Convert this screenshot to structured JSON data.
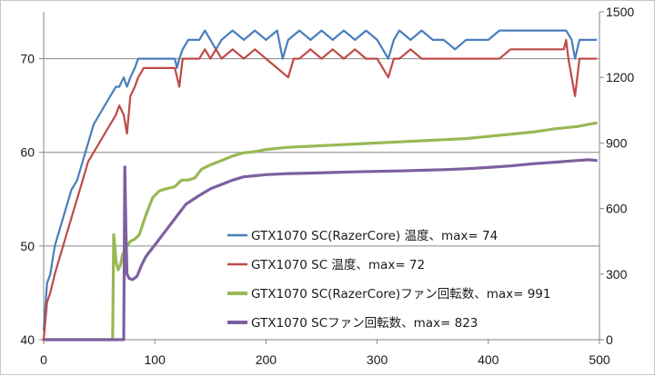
{
  "chart_data": {
    "type": "line",
    "x_range": [
      0,
      500
    ],
    "x_ticks": [
      0,
      100,
      200,
      300,
      400,
      500
    ],
    "y_left_range": [
      40,
      75
    ],
    "y_left_ticks": [
      40,
      50,
      60,
      70
    ],
    "y_right_range": [
      0,
      1500
    ],
    "y_right_ticks": [
      0,
      300,
      600,
      900,
      1200,
      1500
    ],
    "grid": "horizontal",
    "legend_position": "bottom-center",
    "series": [
      {
        "name": "GTX1070 SC(RazerCore) 温度、max= 74",
        "axis": "left",
        "color": "#4a7ebb",
        "points": [
          [
            0,
            41
          ],
          [
            3,
            46
          ],
          [
            6,
            47
          ],
          [
            10,
            50
          ],
          [
            15,
            52
          ],
          [
            20,
            54
          ],
          [
            25,
            56
          ],
          [
            30,
            57
          ],
          [
            35,
            59
          ],
          [
            40,
            61
          ],
          [
            45,
            63
          ],
          [
            50,
            64
          ],
          [
            55,
            65
          ],
          [
            60,
            66
          ],
          [
            65,
            67
          ],
          [
            68,
            67
          ],
          [
            72,
            68
          ],
          [
            75,
            67
          ],
          [
            78,
            68
          ],
          [
            82,
            69
          ],
          [
            85,
            70
          ],
          [
            90,
            70
          ],
          [
            100,
            70
          ],
          [
            110,
            70
          ],
          [
            118,
            70
          ],
          [
            120,
            69
          ],
          [
            122,
            70
          ],
          [
            125,
            71
          ],
          [
            130,
            72
          ],
          [
            135,
            72
          ],
          [
            140,
            72
          ],
          [
            145,
            73
          ],
          [
            150,
            72
          ],
          [
            155,
            71
          ],
          [
            160,
            72
          ],
          [
            170,
            73
          ],
          [
            180,
            72
          ],
          [
            190,
            73
          ],
          [
            200,
            72
          ],
          [
            210,
            73
          ],
          [
            215,
            70
          ],
          [
            220,
            72
          ],
          [
            230,
            73
          ],
          [
            240,
            72
          ],
          [
            250,
            73
          ],
          [
            260,
            72
          ],
          [
            270,
            73
          ],
          [
            280,
            72
          ],
          [
            290,
            73
          ],
          [
            300,
            72
          ],
          [
            310,
            70
          ],
          [
            315,
            72
          ],
          [
            320,
            73
          ],
          [
            330,
            72
          ],
          [
            340,
            73
          ],
          [
            350,
            72
          ],
          [
            360,
            72
          ],
          [
            370,
            71
          ],
          [
            380,
            72
          ],
          [
            390,
            72
          ],
          [
            400,
            72
          ],
          [
            410,
            73
          ],
          [
            420,
            73
          ],
          [
            430,
            73
          ],
          [
            440,
            73
          ],
          [
            450,
            73
          ],
          [
            460,
            73
          ],
          [
            470,
            73
          ],
          [
            475,
            72
          ],
          [
            478,
            70
          ],
          [
            482,
            72
          ],
          [
            490,
            72
          ],
          [
            497,
            72
          ]
        ]
      },
      {
        "name": "GTX1070 SC 温度、max= 72",
        "axis": "left",
        "color": "#be4b48",
        "points": [
          [
            0,
            40
          ],
          [
            3,
            44
          ],
          [
            6,
            45
          ],
          [
            10,
            47
          ],
          [
            15,
            49
          ],
          [
            20,
            51
          ],
          [
            25,
            53
          ],
          [
            30,
            55
          ],
          [
            35,
            57
          ],
          [
            40,
            59
          ],
          [
            45,
            60
          ],
          [
            50,
            61
          ],
          [
            55,
            62
          ],
          [
            60,
            63
          ],
          [
            65,
            64
          ],
          [
            68,
            65
          ],
          [
            72,
            64
          ],
          [
            75,
            62
          ],
          [
            78,
            66
          ],
          [
            82,
            67
          ],
          [
            85,
            68
          ],
          [
            90,
            69
          ],
          [
            100,
            69
          ],
          [
            110,
            69
          ],
          [
            118,
            69
          ],
          [
            122,
            67
          ],
          [
            125,
            70
          ],
          [
            130,
            70
          ],
          [
            140,
            70
          ],
          [
            145,
            71
          ],
          [
            150,
            70
          ],
          [
            155,
            71
          ],
          [
            160,
            70
          ],
          [
            170,
            71
          ],
          [
            180,
            70
          ],
          [
            190,
            71
          ],
          [
            200,
            70
          ],
          [
            210,
            69
          ],
          [
            220,
            68
          ],
          [
            225,
            70
          ],
          [
            230,
            70
          ],
          [
            240,
            71
          ],
          [
            250,
            70
          ],
          [
            260,
            71
          ],
          [
            270,
            70
          ],
          [
            280,
            71
          ],
          [
            290,
            70
          ],
          [
            300,
            70
          ],
          [
            310,
            68
          ],
          [
            315,
            70
          ],
          [
            320,
            70
          ],
          [
            330,
            71
          ],
          [
            340,
            70
          ],
          [
            350,
            70
          ],
          [
            360,
            70
          ],
          [
            370,
            70
          ],
          [
            380,
            70
          ],
          [
            390,
            70
          ],
          [
            400,
            70
          ],
          [
            410,
            70
          ],
          [
            420,
            71
          ],
          [
            430,
            71
          ],
          [
            440,
            71
          ],
          [
            450,
            71
          ],
          [
            460,
            71
          ],
          [
            468,
            71
          ],
          [
            470,
            72
          ],
          [
            472,
            70
          ],
          [
            475,
            68
          ],
          [
            478,
            66
          ],
          [
            482,
            70
          ],
          [
            490,
            70
          ],
          [
            497,
            70
          ]
        ]
      },
      {
        "name": "GTX1070 SC(RazerCore)ファン回転数、max= 991",
        "axis": "right",
        "color": "#98b954",
        "points": [
          [
            0,
            0
          ],
          [
            60,
            0
          ],
          [
            62,
            0
          ],
          [
            63,
            480
          ],
          [
            64,
            430
          ],
          [
            65,
            360
          ],
          [
            67,
            320
          ],
          [
            69,
            340
          ],
          [
            71,
            390
          ],
          [
            74,
            420
          ],
          [
            78,
            450
          ],
          [
            82,
            460
          ],
          [
            86,
            480
          ],
          [
            92,
            570
          ],
          [
            98,
            650
          ],
          [
            104,
            680
          ],
          [
            110,
            690
          ],
          [
            118,
            700
          ],
          [
            124,
            730
          ],
          [
            130,
            730
          ],
          [
            136,
            740
          ],
          [
            142,
            780
          ],
          [
            150,
            800
          ],
          [
            160,
            820
          ],
          [
            170,
            840
          ],
          [
            180,
            855
          ],
          [
            190,
            860
          ],
          [
            200,
            870
          ],
          [
            220,
            880
          ],
          [
            240,
            885
          ],
          [
            260,
            890
          ],
          [
            280,
            895
          ],
          [
            300,
            900
          ],
          [
            320,
            905
          ],
          [
            340,
            910
          ],
          [
            360,
            915
          ],
          [
            380,
            920
          ],
          [
            400,
            930
          ],
          [
            420,
            940
          ],
          [
            440,
            950
          ],
          [
            460,
            965
          ],
          [
            480,
            975
          ],
          [
            490,
            985
          ],
          [
            497,
            991
          ]
        ]
      },
      {
        "name": "GTX1070 SCファン回転数、max= 823",
        "axis": "right",
        "color": "#7d60a0",
        "points": [
          [
            0,
            0
          ],
          [
            72,
            0
          ],
          [
            73,
            790
          ],
          [
            74,
            500
          ],
          [
            75,
            300
          ],
          [
            77,
            280
          ],
          [
            80,
            275
          ],
          [
            84,
            290
          ],
          [
            88,
            340
          ],
          [
            92,
            380
          ],
          [
            98,
            420
          ],
          [
            104,
            460
          ],
          [
            110,
            500
          ],
          [
            116,
            540
          ],
          [
            122,
            580
          ],
          [
            128,
            620
          ],
          [
            134,
            640
          ],
          [
            140,
            660
          ],
          [
            150,
            690
          ],
          [
            160,
            710
          ],
          [
            170,
            730
          ],
          [
            180,
            745
          ],
          [
            190,
            750
          ],
          [
            200,
            755
          ],
          [
            220,
            760
          ],
          [
            240,
            762
          ],
          [
            260,
            765
          ],
          [
            280,
            768
          ],
          [
            300,
            770
          ],
          [
            320,
            772
          ],
          [
            340,
            775
          ],
          [
            360,
            778
          ],
          [
            380,
            782
          ],
          [
            400,
            788
          ],
          [
            420,
            795
          ],
          [
            440,
            805
          ],
          [
            460,
            812
          ],
          [
            480,
            820
          ],
          [
            490,
            823
          ],
          [
            497,
            820
          ]
        ]
      }
    ]
  }
}
